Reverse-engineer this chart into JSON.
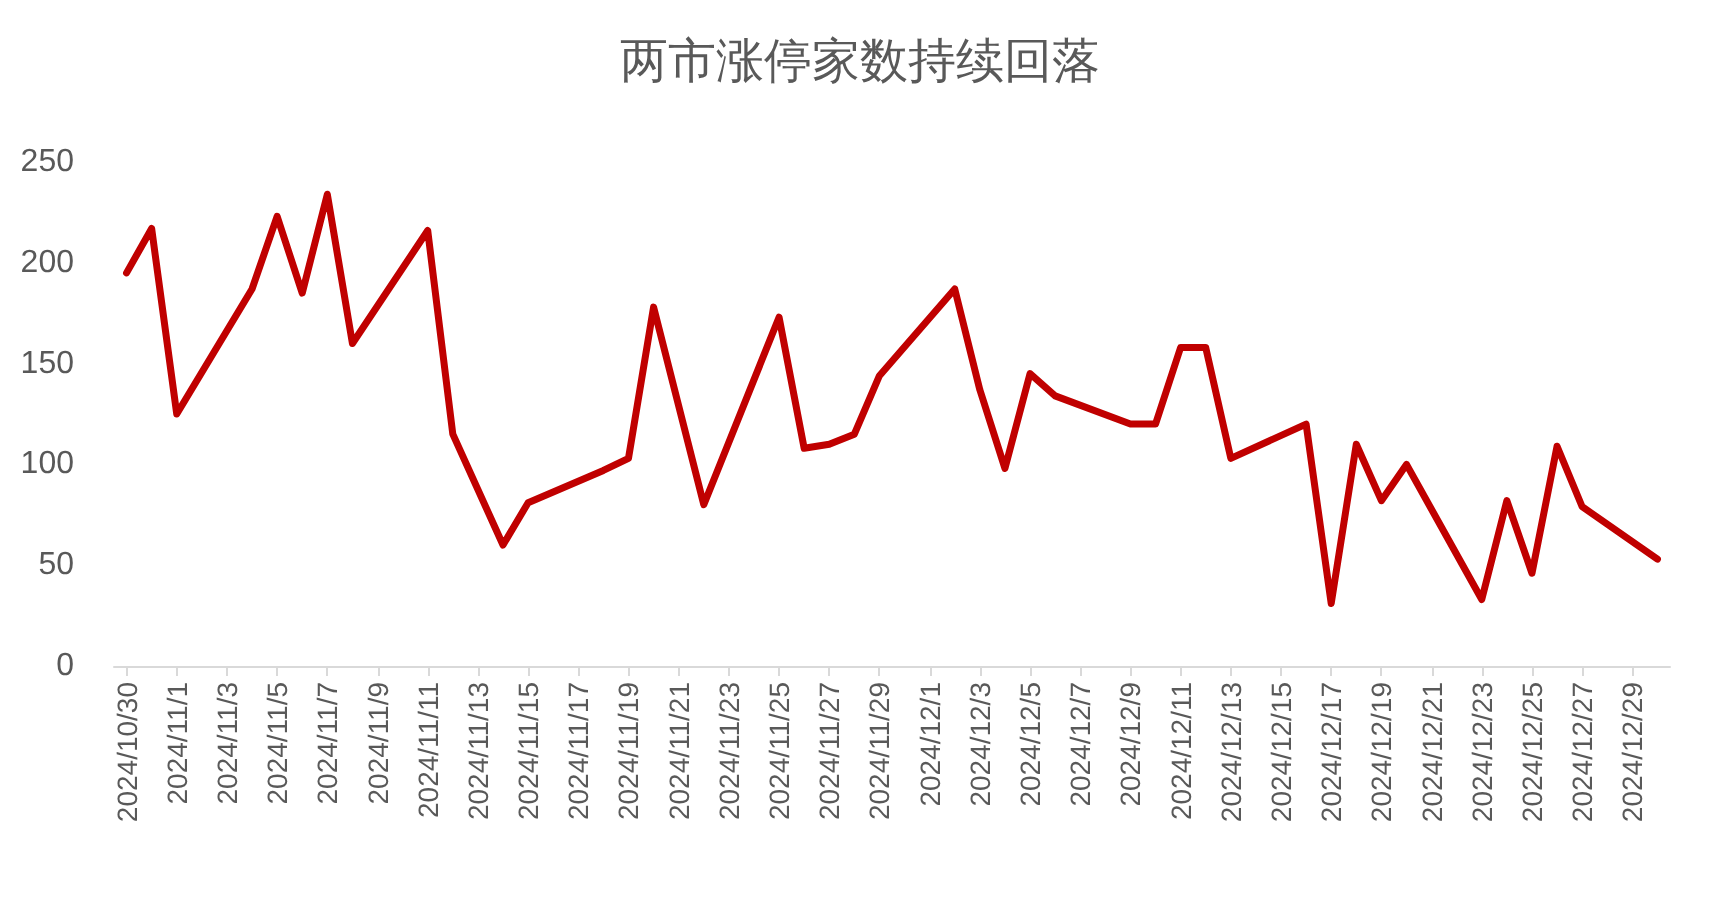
{
  "chart_data": {
    "type": "line",
    "title": "两市涨停家数持续回落",
    "x": [
      "2024-10-30",
      "2024-10-31",
      "2024-11-01",
      "2024-11-04",
      "2024-11-05",
      "2024-11-06",
      "2024-11-07",
      "2024-11-08",
      "2024-11-11",
      "2024-11-12",
      "2024-11-14",
      "2024-11-15",
      "2024-11-18",
      "2024-11-19",
      "2024-11-20",
      "2024-11-22",
      "2024-11-25",
      "2024-11-26",
      "2024-11-27",
      "2024-11-28",
      "2024-11-29",
      "2024-12-02",
      "2024-12-03",
      "2024-12-04",
      "2024-12-05",
      "2024-12-06",
      "2024-12-09",
      "2024-12-10",
      "2024-12-11",
      "2024-12-12",
      "2024-12-13",
      "2024-12-16",
      "2024-12-17",
      "2024-12-18",
      "2024-12-19",
      "2024-12-20",
      "2024-12-23",
      "2024-12-24",
      "2024-12-25",
      "2024-12-26",
      "2024-12-27",
      "2024-12-30"
    ],
    "series": [
      {
        "color": "#c00000",
        "values": [
          195,
          217,
          125,
          187,
          223,
          185,
          234,
          160,
          216,
          115,
          60,
          81,
          97,
          103,
          178,
          80,
          173,
          108,
          110,
          115,
          144,
          187,
          137,
          98,
          145,
          134,
          120,
          120,
          158,
          158,
          103,
          120,
          31,
          110,
          82,
          100,
          33,
          82,
          46,
          109,
          79,
          53
        ]
      }
    ],
    "xlim": [
      "2024-10-29T12:00",
      "2024-12-30T12:00"
    ],
    "xticks": [
      {
        "value": "2024-10-30",
        "label": "2024/10/30"
      },
      {
        "value": "2024-11-01",
        "label": "2024/11/1"
      },
      {
        "value": "2024-11-03",
        "label": "2024/11/3"
      },
      {
        "value": "2024-11-05",
        "label": "2024/11/5"
      },
      {
        "value": "2024-11-07",
        "label": "2024/11/7"
      },
      {
        "value": "2024-11-09",
        "label": "2024/11/9"
      },
      {
        "value": "2024-11-11",
        "label": "2024/11/11"
      },
      {
        "value": "2024-11-13",
        "label": "2024/11/13"
      },
      {
        "value": "2024-11-15",
        "label": "2024/11/15"
      },
      {
        "value": "2024-11-17",
        "label": "2024/11/17"
      },
      {
        "value": "2024-11-19",
        "label": "2024/11/19"
      },
      {
        "value": "2024-11-21",
        "label": "2024/11/21"
      },
      {
        "value": "2024-11-23",
        "label": "2024/11/23"
      },
      {
        "value": "2024-11-25",
        "label": "2024/11/25"
      },
      {
        "value": "2024-11-27",
        "label": "2024/11/27"
      },
      {
        "value": "2024-11-29",
        "label": "2024/11/29"
      },
      {
        "value": "2024-12-01",
        "label": "2024/12/1"
      },
      {
        "value": "2024-12-03",
        "label": "2024/12/3"
      },
      {
        "value": "2024-12-05",
        "label": "2024/12/5"
      },
      {
        "value": "2024-12-07",
        "label": "2024/12/7"
      },
      {
        "value": "2024-12-09",
        "label": "2024/12/9"
      },
      {
        "value": "2024-12-11",
        "label": "2024/12/11"
      },
      {
        "value": "2024-12-13",
        "label": "2024/12/13"
      },
      {
        "value": "2024-12-15",
        "label": "2024/12/15"
      },
      {
        "value": "2024-12-17",
        "label": "2024/12/17"
      },
      {
        "value": "2024-12-19",
        "label": "2024/12/19"
      },
      {
        "value": "2024-12-21",
        "label": "2024/12/21"
      },
      {
        "value": "2024-12-23",
        "label": "2024/12/23"
      },
      {
        "value": "2024-12-25",
        "label": "2024/12/25"
      },
      {
        "value": "2024-12-27",
        "label": "2024/12/27"
      },
      {
        "value": "2024-12-29",
        "label": "2024/12/29"
      }
    ],
    "ylim": [
      0,
      250
    ],
    "yticks": [
      0,
      50,
      100,
      150,
      200,
      250
    ],
    "grid": false,
    "marker": "none",
    "line_style": "solid"
  }
}
